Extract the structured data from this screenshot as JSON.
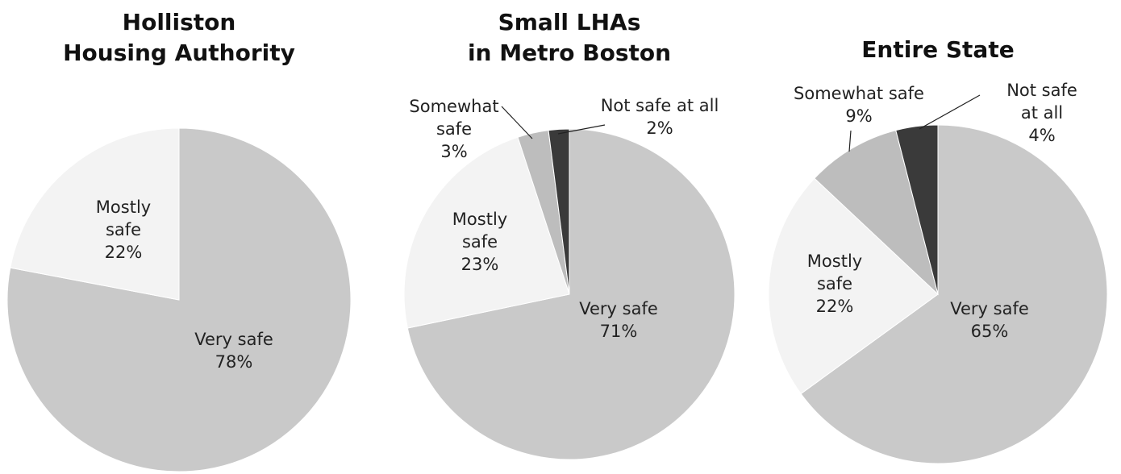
{
  "chart_data": [
    {
      "type": "pie",
      "title": "Holliston\nHousing Authority",
      "categories": [
        "Very safe",
        "Mostly\nsafe"
      ],
      "values": [
        78,
        22
      ],
      "value_labels": [
        "78%",
        "22%"
      ],
      "colors": [
        "#c9c9c9",
        "#f3f3f3"
      ]
    },
    {
      "type": "pie",
      "title": "Small LHAs\nin Metro Boston",
      "categories": [
        "Very safe",
        "Mostly\nsafe",
        "Somewhat\nsafe",
        "Not safe at all"
      ],
      "values": [
        71,
        23,
        3,
        2
      ],
      "value_labels": [
        "71%",
        "23%",
        "3%",
        "2%"
      ],
      "colors": [
        "#c9c9c9",
        "#f3f3f3",
        "#bdbdbd",
        "#3a3a3a"
      ]
    },
    {
      "type": "pie",
      "title": "Entire State",
      "categories": [
        "Very safe",
        "Mostly\nsafe",
        "Somewhat safe",
        "Not safe at all"
      ],
      "values": [
        65,
        22,
        9,
        4
      ],
      "value_labels": [
        "65%",
        "22%",
        "9%",
        "4%"
      ],
      "colors": [
        "#c9c9c9",
        "#f3f3f3",
        "#bdbdbd",
        "#3a3a3a"
      ]
    }
  ]
}
